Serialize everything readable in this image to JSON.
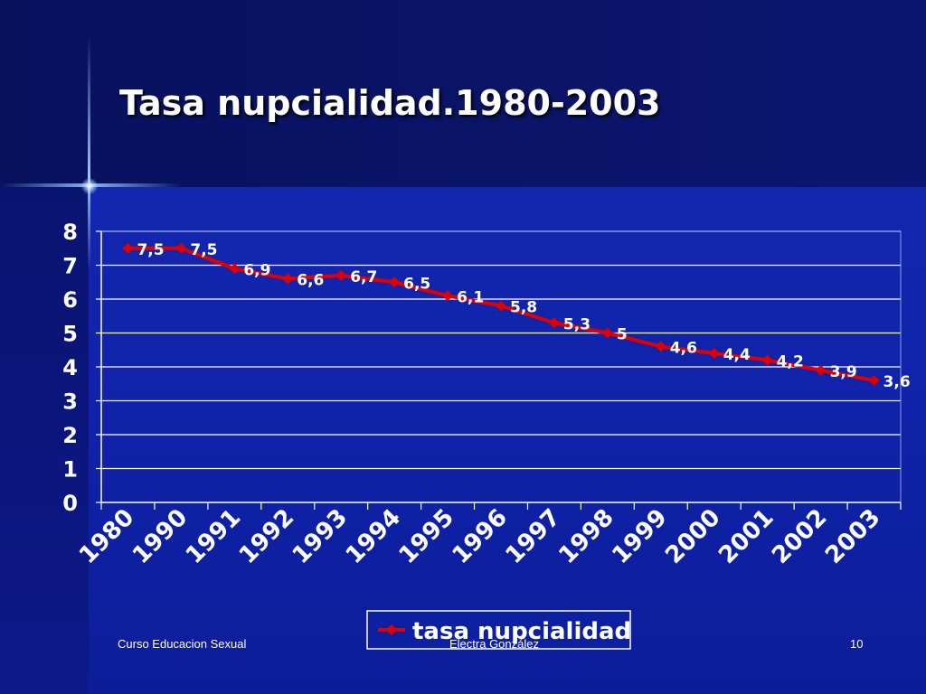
{
  "slide": {
    "title": "Tasa nupcialidad.1980-2003",
    "footer_left": "Curso Educacion Sexual",
    "footer_center": "Electra González",
    "footer_right": "10"
  },
  "colors": {
    "line": "#e00000",
    "text": "#ffffff",
    "grid": "#ffffff"
  },
  "chart_data": {
    "type": "line",
    "title": "Tasa nupcialidad.1980-2003",
    "categories": [
      "1980",
      "1990",
      "1991",
      "1992",
      "1993",
      "1994",
      "1995",
      "1996",
      "1997",
      "1998",
      "1999",
      "2000",
      "2001",
      "2002",
      "2003"
    ],
    "series": [
      {
        "name": "tasa nupcialidad",
        "values": [
          7.5,
          7.5,
          6.9,
          6.6,
          6.7,
          6.5,
          6.1,
          5.8,
          5.3,
          5,
          4.6,
          4.4,
          4.2,
          3.9,
          3.6
        ],
        "labels": [
          "7,5",
          "7,5",
          "6,9",
          "6,6",
          "6,7",
          "6,5",
          "6,1",
          "5,8",
          "5,3",
          "5",
          "4,6",
          "4,4",
          "4,2",
          "3,9",
          "3,6"
        ]
      }
    ],
    "ylim": [
      0,
      8
    ],
    "yticks": [
      "0",
      "1",
      "2",
      "3",
      "4",
      "5",
      "6",
      "7",
      "8"
    ],
    "grid": "horizontal",
    "legend": "bottom",
    "xlabel": "",
    "ylabel": ""
  }
}
